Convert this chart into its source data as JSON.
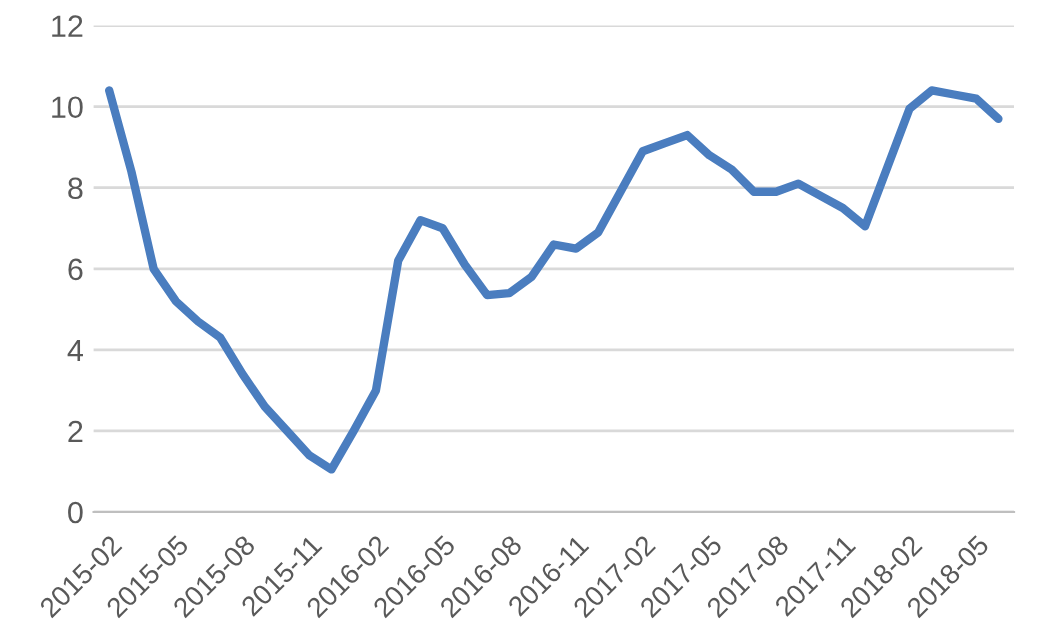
{
  "chart_data": {
    "type": "line",
    "categories": [
      "2015-02",
      null,
      null,
      "2015-05",
      null,
      null,
      "2015-08",
      null,
      null,
      "2015-11",
      null,
      null,
      "2016-02",
      null,
      null,
      "2016-05",
      null,
      null,
      "2016-08",
      null,
      null,
      "2016-11",
      null,
      null,
      "2017-02",
      null,
      null,
      "2017-05",
      null,
      null,
      "2017-08",
      null,
      null,
      "2017-11",
      null,
      null,
      "2018-02",
      null,
      null,
      "2018-05",
      null
    ],
    "series": [
      {
        "color": "#4a7dbf",
        "values": [
          10.4,
          8.4,
          6.0,
          5.2,
          4.7,
          4.3,
          3.4,
          2.6,
          2.0,
          1.4,
          1.05,
          2.0,
          3.0,
          6.2,
          7.2,
          7.0,
          6.1,
          5.35,
          5.4,
          5.8,
          6.6,
          6.5,
          6.9,
          7.9,
          8.9,
          9.1,
          9.3,
          8.8,
          8.45,
          7.9,
          7.9,
          8.1,
          7.8,
          7.5,
          7.05,
          8.5,
          9.95,
          10.4,
          10.3,
          10.2,
          9.7
        ]
      }
    ],
    "ylim": [
      0,
      12
    ],
    "yticks": [
      0,
      2,
      4,
      6,
      8,
      10,
      12
    ],
    "grid": "y",
    "legend": false,
    "marker": "none",
    "line_style": "solid"
  }
}
